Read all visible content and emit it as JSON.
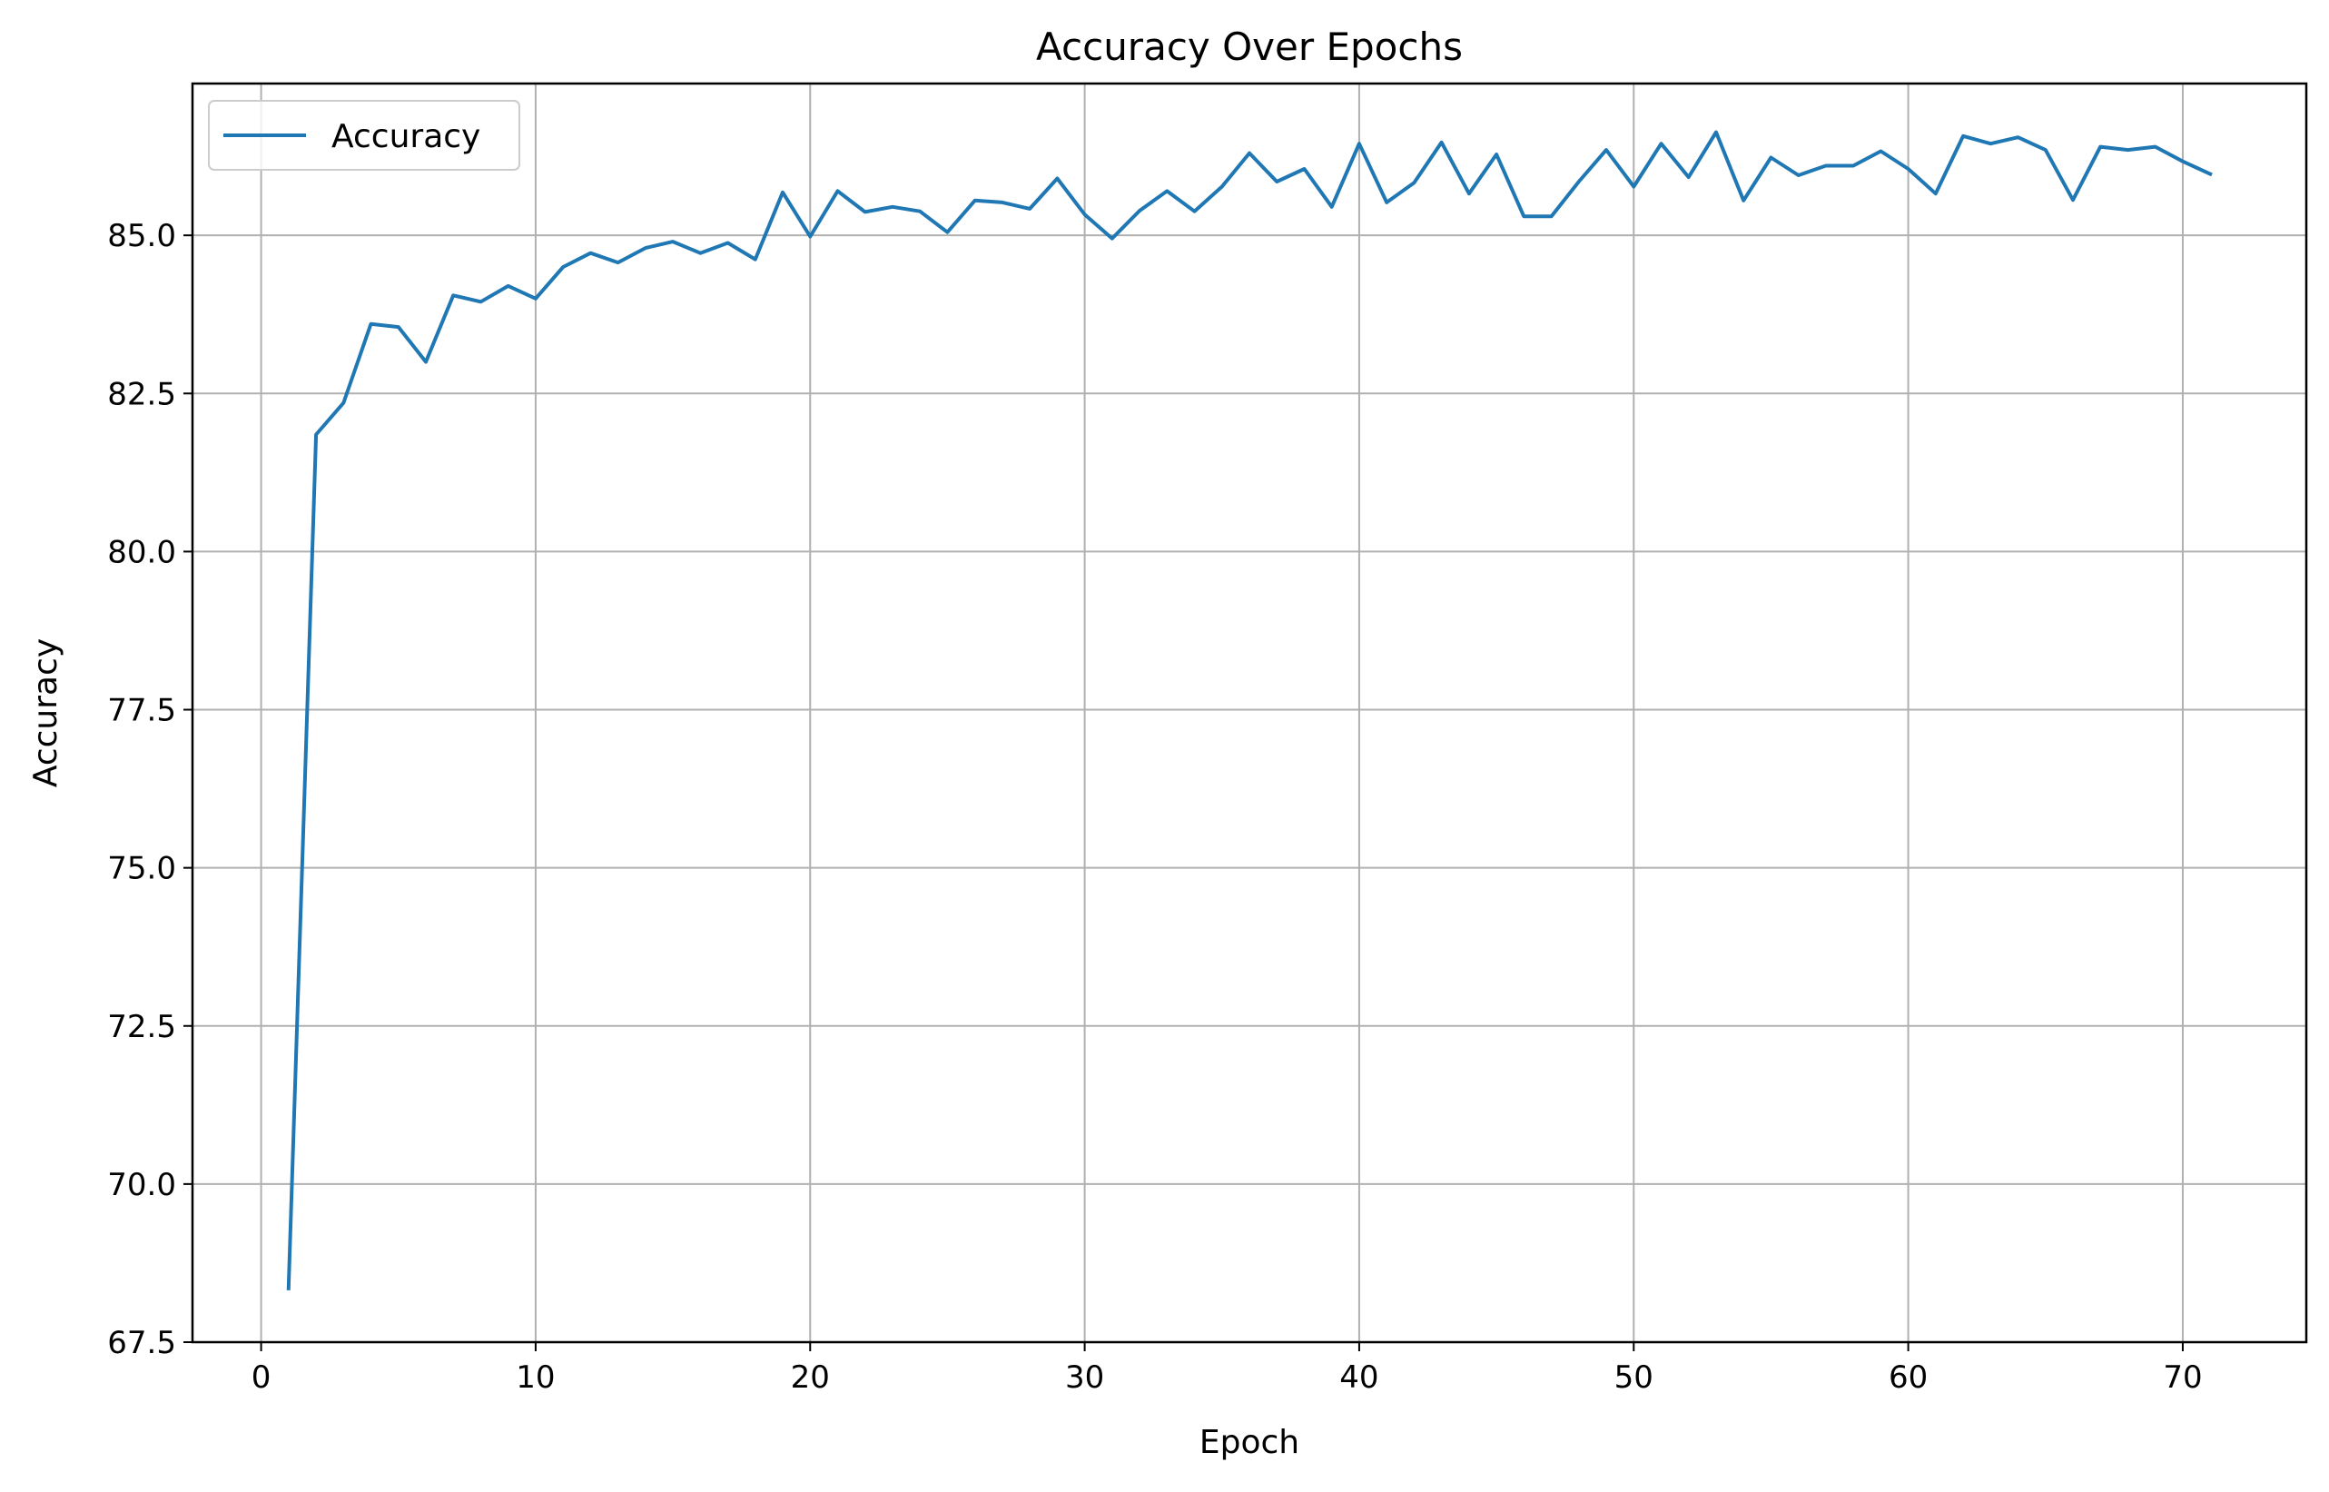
{
  "chart_data": {
    "type": "line",
    "title": "Accuracy Over Epochs",
    "xlabel": "Epoch",
    "ylabel": "Accuracy",
    "xlim": [
      -2.5,
      74.5
    ],
    "ylim": [
      67.5,
      87.4
    ],
    "xticks": [
      0,
      10,
      20,
      30,
      40,
      50,
      60,
      70
    ],
    "xtick_labels": [
      "0",
      "10",
      "20",
      "30",
      "40",
      "50",
      "60",
      "70"
    ],
    "yticks": [
      67.5,
      70.0,
      72.5,
      75.0,
      77.5,
      80.0,
      82.5,
      85.0
    ],
    "ytick_labels": [
      "67.5",
      "70.0",
      "72.5",
      "75.0",
      "77.5",
      "80.0",
      "82.5",
      "85.0"
    ],
    "grid": true,
    "legend_position": "top-left",
    "series": [
      {
        "name": "Accuracy",
        "color": "#1f77b4",
        "x": [
          1,
          2,
          3,
          4,
          5,
          6,
          7,
          8,
          9,
          10,
          11,
          12,
          13,
          14,
          15,
          16,
          17,
          18,
          19,
          20,
          21,
          22,
          23,
          24,
          25,
          26,
          27,
          28,
          29,
          30,
          31,
          32,
          33,
          34,
          35,
          36,
          37,
          38,
          39,
          40,
          41,
          42,
          43,
          44,
          45,
          46,
          47,
          48,
          49,
          50,
          51,
          52,
          53,
          54,
          55,
          56,
          57,
          58,
          59,
          60,
          61,
          62,
          63,
          64,
          65,
          66,
          67,
          68,
          69,
          70,
          71
        ],
        "values": [
          68.35,
          81.85,
          82.35,
          83.6,
          83.55,
          83.0,
          84.05,
          83.95,
          84.2,
          84.0,
          84.5,
          84.72,
          84.57,
          84.8,
          84.9,
          84.72,
          84.88,
          84.62,
          85.68,
          84.98,
          85.7,
          85.37,
          85.45,
          85.38,
          85.05,
          85.55,
          85.52,
          85.42,
          85.9,
          85.33,
          84.95,
          85.39,
          85.7,
          85.38,
          85.77,
          86.3,
          85.85,
          86.05,
          85.45,
          86.45,
          85.52,
          85.83,
          86.47,
          85.66,
          86.28,
          85.3,
          85.3,
          85.85,
          86.35,
          85.77,
          86.45,
          85.92,
          86.63,
          85.55,
          86.23,
          85.95,
          86.1,
          86.1,
          86.33,
          86.05,
          85.66,
          86.57,
          86.45,
          86.55,
          86.35,
          85.56,
          86.4,
          86.35,
          86.4,
          86.17,
          85.97
        ]
      }
    ]
  }
}
